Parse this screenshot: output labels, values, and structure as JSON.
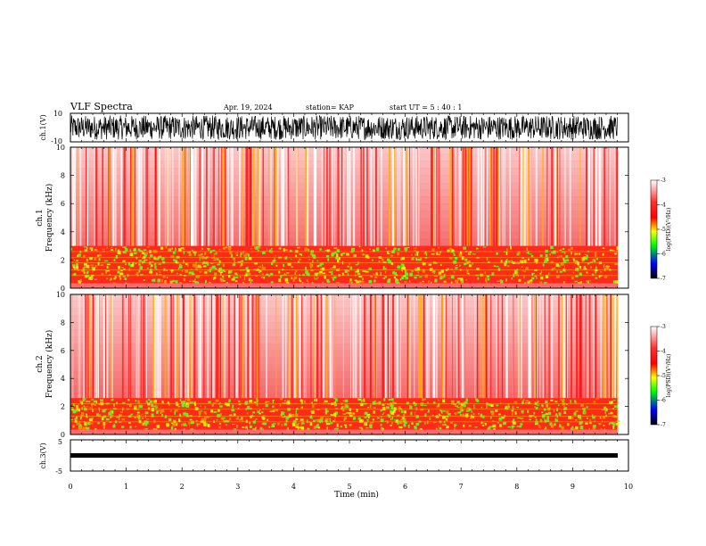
{
  "header": {
    "title": "VLF Spectra",
    "date": "Apr. 19, 2024",
    "station": "station= KAP",
    "start": "start  UT  =   5  : 40 : 1"
  },
  "chart_data": [
    {
      "type": "line",
      "name": "ch1-waveform",
      "ylabel": "ch.1(V)",
      "ylim": [
        -10,
        10
      ],
      "yticks": [
        10,
        -10
      ],
      "xlim": [
        0,
        10
      ]
    },
    {
      "type": "heatmap",
      "name": "ch1-spectrogram",
      "ylabel": "ch.1\nFrequency (kHz)",
      "ylabel_lines": [
        "ch.1",
        "Frequency (kHz)"
      ],
      "ylim": [
        0,
        10
      ],
      "yticks": [
        0,
        2,
        4,
        6,
        8,
        10
      ],
      "xlim": [
        0,
        9.8
      ]
    },
    {
      "type": "heatmap",
      "name": "ch2-spectrogram",
      "ylabel": "ch.2\nFrequency (kHz)",
      "ylabel_lines": [
        "ch.2",
        "Frequency (kHz)"
      ],
      "ylim": [
        0,
        10
      ],
      "yticks": [
        0,
        2,
        4,
        6,
        8,
        10
      ],
      "xlim": [
        0,
        9.8
      ]
    },
    {
      "type": "line",
      "name": "ch3-waveform",
      "ylabel": "ch.3(V)",
      "ylim": [
        -5,
        5
      ],
      "yticks": [
        5,
        -5
      ],
      "xlim": [
        0,
        10
      ],
      "xlabel": "Time (min)",
      "xticks": [
        0,
        1,
        2,
        3,
        4,
        5,
        6,
        7,
        8,
        9,
        10
      ]
    }
  ],
  "colorbar": {
    "label": "log(PSD)(V²/Hz)",
    "range": [
      -7,
      -3
    ],
    "ticks": [
      "-3",
      "-4",
      "-5",
      "-6",
      "-7"
    ],
    "colors": [
      "#ffffff",
      "#ff0000",
      "#ffff00",
      "#00ff00",
      "#0000ff",
      "#000000"
    ]
  }
}
